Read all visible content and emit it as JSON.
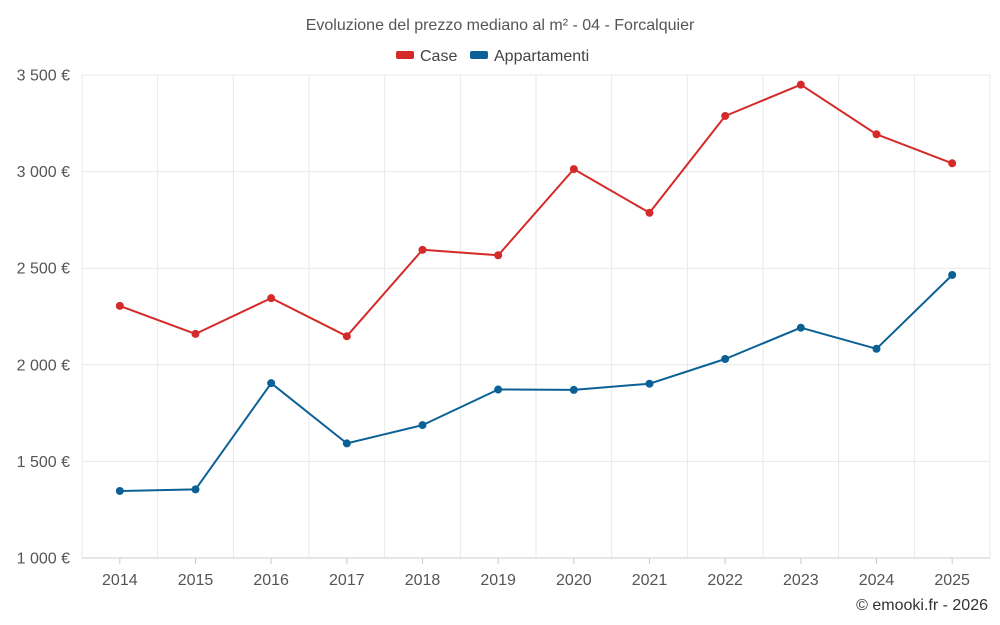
{
  "chart_data": {
    "type": "line",
    "title": "Evoluzione del prezzo mediano al m² - 04 - Forcalquier",
    "categories": [
      "2014",
      "2015",
      "2016",
      "2017",
      "2018",
      "2019",
      "2020",
      "2021",
      "2022",
      "2023",
      "2024",
      "2025"
    ],
    "series": [
      {
        "name": "Case",
        "color": "#d42a2a",
        "values": [
          2305,
          2160,
          2345,
          2148,
          2595,
          2567,
          3013,
          2787,
          3288,
          3450,
          3193,
          3043
        ]
      },
      {
        "name": "Appartamenti",
        "color": "#0b6196",
        "values": [
          1347,
          1355,
          1905,
          1593,
          1688,
          1872,
          1870,
          1902,
          2030,
          2192,
          2083,
          2465
        ]
      }
    ],
    "y_ticks": [
      1000,
      1500,
      2000,
      2500,
      3000,
      3500
    ],
    "y_tick_labels": [
      "1 000 €",
      "1 500 €",
      "2 000 €",
      "2 500 €",
      "3 000 €",
      "3 500 €"
    ],
    "ylim": [
      1000,
      3500
    ],
    "xlabel": "",
    "ylabel": "",
    "grid": true,
    "legend_position": "top-center",
    "credit": "© emooki.fr - 2026"
  }
}
